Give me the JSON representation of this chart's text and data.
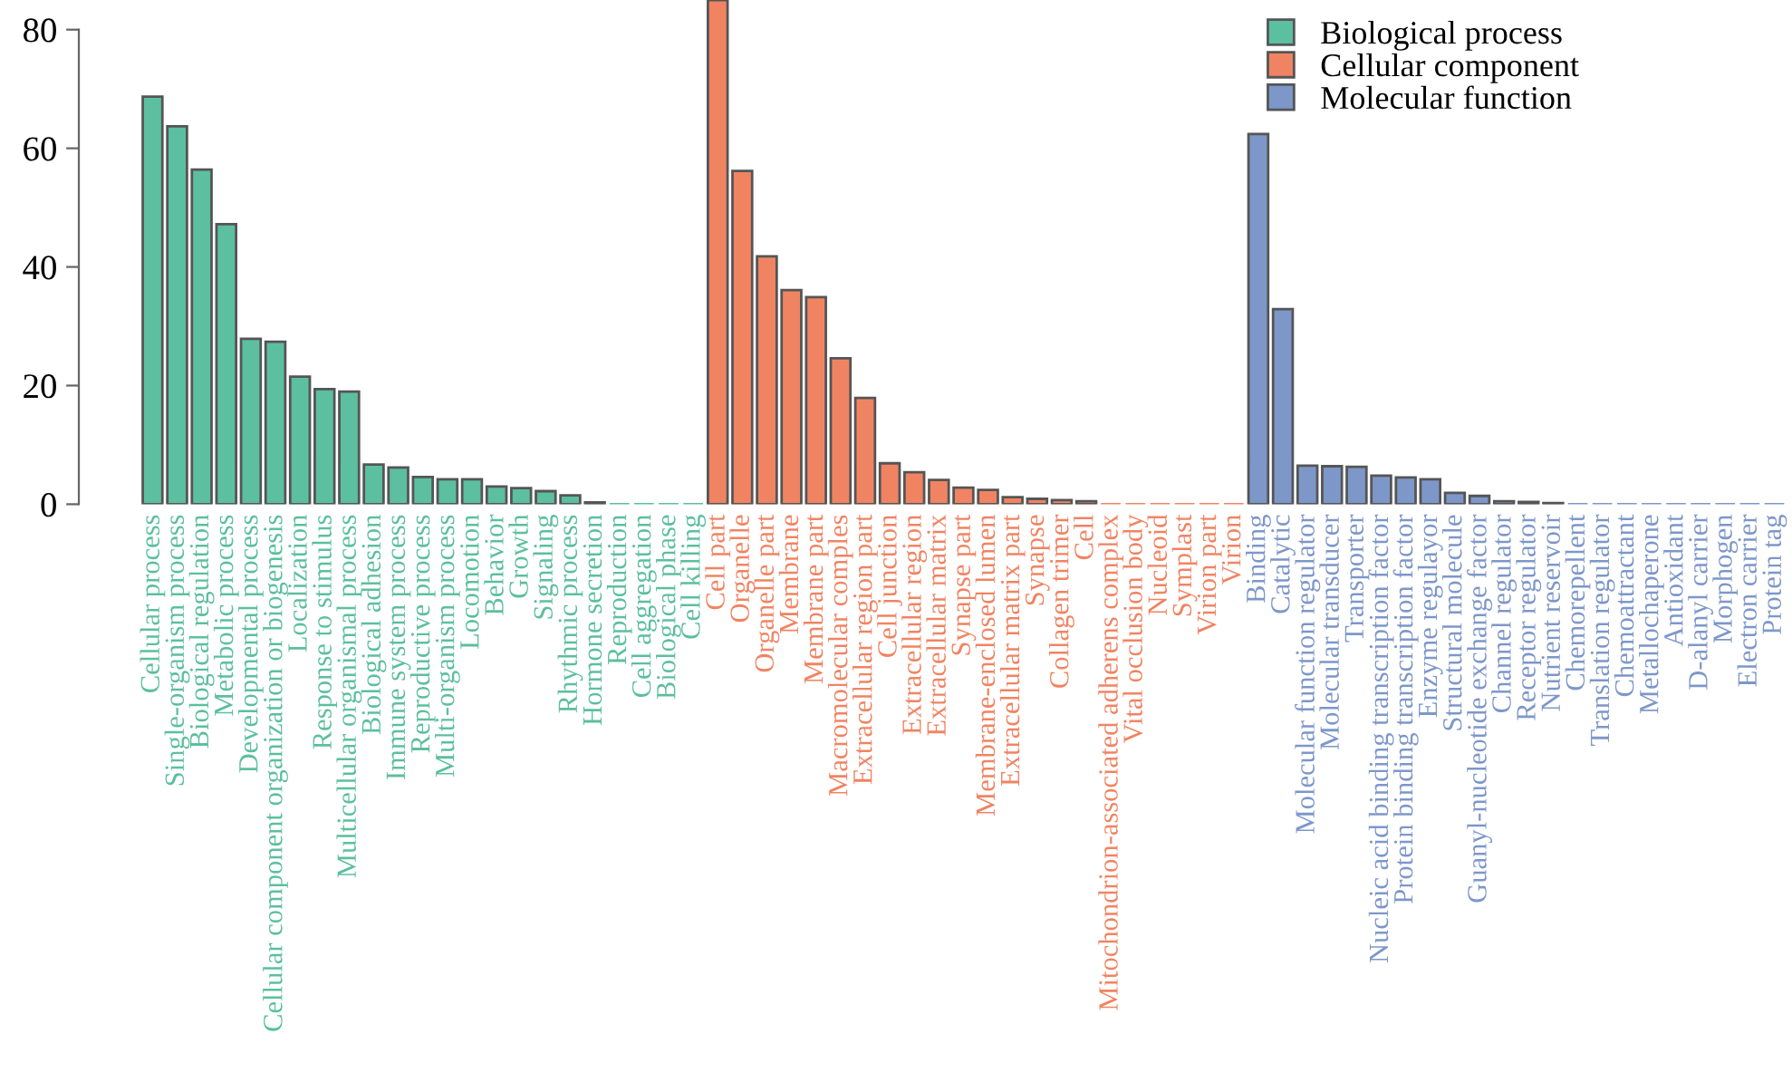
{
  "chart_data": {
    "type": "bar",
    "categories": [
      "Cellular process",
      "Single-organism process",
      "Biological regulation",
      "Metabolic process",
      "Developmental process",
      "Cellular component organization or biogenesis",
      "Localization",
      "Response to stimulus",
      "Multicellular organismal process",
      "Biological adhesion",
      "Immune system process",
      "Reproductive process",
      "Multi-organism process",
      "Locomotion",
      "Behavior",
      "Growth",
      "Signaling",
      "Rhythmic process",
      "Hormone secretion",
      "Reproduction",
      "Cell aggregation",
      "Biological phase",
      "Cell killing",
      "Cell part",
      "Organelle",
      "Organelle part",
      "Membrane",
      "Membrane part",
      "Macromolecular comples",
      "Extracellular region part",
      "Cell junction",
      "Extracellular region",
      "Extracellular matrix",
      "Synapse part",
      "Membrane-enclosed lumen",
      "Extracellular matrix part",
      "Synapse",
      "Collagen trimer",
      "Cell",
      "Mitochondrion-associated adherens complex",
      "Vital occlusion body",
      "Nucleoid",
      "Symplast",
      "Virion part",
      "Virion",
      "Binding",
      "Catalytic",
      "Molecular function regulator",
      "Molecular transducer",
      "Transporter",
      "Nucleic acid binding transcription factor",
      "Protein binding transcription factor",
      "Enzyme regulayor",
      "Structural molecule",
      "Guanyl-nucleotide exchange factor",
      "Channel regulator",
      "Receptor regulator",
      "Nutrient reservoir",
      "Chemorepellent",
      "Translation regulator",
      "Chemoattractant",
      "Metallochaperone",
      "Antioxidant",
      "D-alanyl carrier",
      "Morphogen",
      "Electron carrier",
      "Protein tag"
    ],
    "series": [
      {
        "name": "Biological process",
        "color": "#5cbf9f",
        "values": [
          68.7,
          63.7,
          56.4,
          47.2,
          27.9,
          27.4,
          21.5,
          19.4,
          19.0,
          6.7,
          6.2,
          4.6,
          4.2,
          4.2,
          3.0,
          2.7,
          2.2,
          1.5,
          0.3,
          0,
          0,
          0,
          0,
          null,
          null,
          null,
          null,
          null,
          null,
          null,
          null,
          null,
          null,
          null,
          null,
          null,
          null,
          null,
          null,
          null,
          null,
          null,
          null,
          null,
          null,
          null,
          null,
          null,
          null,
          null,
          null,
          null,
          null,
          null,
          null,
          null,
          null,
          null,
          null,
          null,
          null,
          null,
          null,
          null,
          null,
          null,
          null
        ]
      },
      {
        "name": "Cellular component",
        "color": "#f08462",
        "values": [
          null,
          null,
          null,
          null,
          null,
          null,
          null,
          null,
          null,
          null,
          null,
          null,
          null,
          null,
          null,
          null,
          null,
          null,
          null,
          null,
          null,
          null,
          null,
          85,
          56.2,
          41.8,
          36.1,
          34.9,
          24.6,
          17.9,
          6.9,
          5.4,
          4.1,
          2.8,
          2.4,
          1.2,
          0.9,
          0.7,
          0.5,
          0,
          0,
          0,
          0,
          0,
          0,
          null,
          null,
          null,
          null,
          null,
          null,
          null,
          null,
          null,
          null,
          null,
          null,
          null,
          null,
          null,
          null,
          null,
          null,
          null,
          null,
          null,
          null
        ]
      },
      {
        "name": "Molecular function",
        "color": "#7d97c9",
        "values": [
          null,
          null,
          null,
          null,
          null,
          null,
          null,
          null,
          null,
          null,
          null,
          null,
          null,
          null,
          null,
          null,
          null,
          null,
          null,
          null,
          null,
          null,
          null,
          null,
          null,
          null,
          null,
          null,
          null,
          null,
          null,
          null,
          null,
          null,
          null,
          null,
          null,
          null,
          null,
          null,
          null,
          null,
          null,
          null,
          null,
          62.4,
          32.9,
          6.5,
          6.4,
          6.3,
          4.8,
          4.5,
          4.2,
          1.9,
          1.4,
          0.5,
          0.4,
          0.2,
          0,
          0,
          0,
          0,
          0,
          0,
          0,
          0,
          0
        ]
      }
    ],
    "ylim": [
      0,
      85
    ],
    "yticks": [
      0,
      20,
      40,
      60,
      80
    ],
    "grid": false,
    "legend": "top right"
  }
}
